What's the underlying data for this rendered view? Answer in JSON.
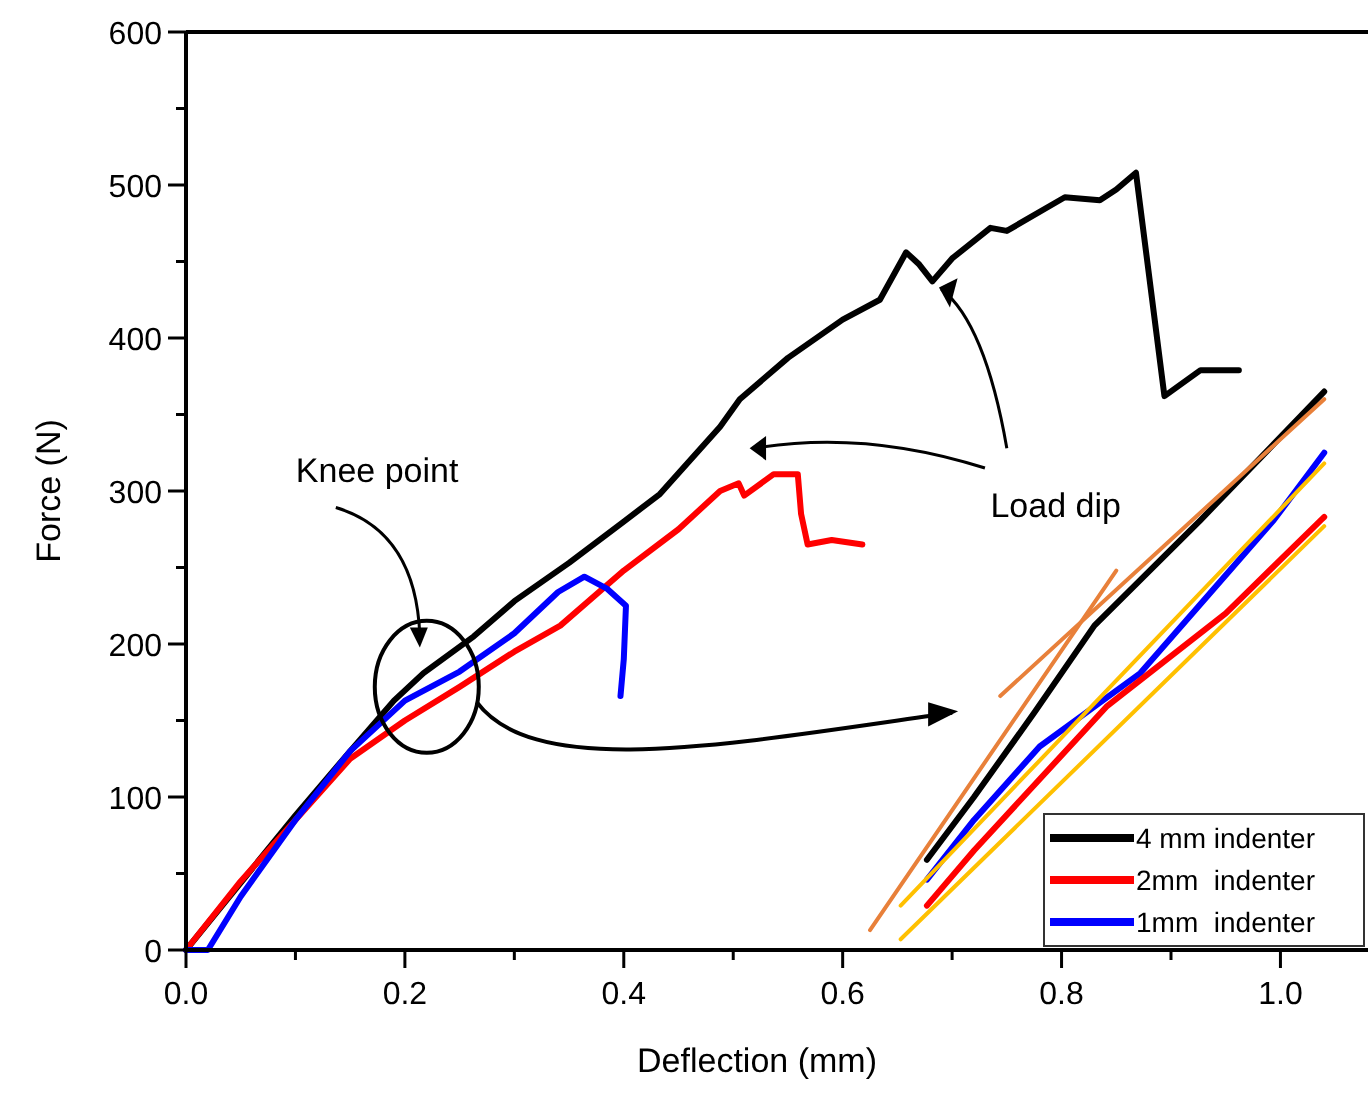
{
  "chart_data": {
    "type": "line",
    "xlabel": "Deflection (mm)",
    "ylabel": "Force (N)",
    "xlim": [
      0,
      1.08
    ],
    "ylim": [
      0,
      600
    ],
    "xticks": [
      {
        "value": 0,
        "label": "0.0"
      },
      {
        "value": 0.1,
        "label": null
      },
      {
        "value": 0.2,
        "label": "0.2"
      },
      {
        "value": 0.3,
        "label": null
      },
      {
        "value": 0.4,
        "label": "0.4"
      },
      {
        "value": 0.5,
        "label": null
      },
      {
        "value": 0.6,
        "label": "0.6"
      },
      {
        "value": 0.7,
        "label": null
      },
      {
        "value": 0.8,
        "label": "0.8"
      },
      {
        "value": 0.9,
        "label": null
      },
      {
        "value": 1.0,
        "label": "1.0"
      }
    ],
    "yticks": [
      0,
      {
        "value": 50,
        "label": null
      },
      100,
      {
        "value": 150,
        "label": null
      },
      200,
      {
        "value": 250,
        "label": null
      },
      300,
      {
        "value": 350,
        "label": null
      },
      400,
      {
        "value": 450,
        "label": null
      },
      500,
      {
        "value": 550,
        "label": null
      },
      600
    ],
    "legend": "bottom right",
    "marker": "none",
    "line_style": "solid",
    "grid": false,
    "series": [
      {
        "name": "4 mm indenter",
        "color": "#000000",
        "x": [
          0,
          0.1,
          0.15,
          0.19,
          0.217,
          0.263,
          0.3,
          0.35,
          0.4,
          0.433,
          0.488,
          0.506,
          0.55,
          0.6,
          0.634,
          0.658,
          0.67,
          0.682,
          0.7,
          0.735,
          0.75,
          0.803,
          0.835,
          0.85,
          0.868,
          0.894,
          0.927,
          0.962
        ],
        "values": [
          0,
          88,
          130,
          163,
          181,
          205,
          228,
          253,
          280,
          298,
          342,
          360,
          387,
          412,
          425,
          456,
          448,
          437,
          452,
          472,
          470,
          492,
          490,
          497,
          508,
          362,
          379,
          379
        ]
      },
      {
        "name": "2mm  indenter",
        "color": "#ff0000",
        "x": [
          0,
          0.05,
          0.1,
          0.15,
          0.2,
          0.25,
          0.3,
          0.342,
          0.4,
          0.45,
          0.488,
          0.505,
          0.51,
          0.537,
          0.559,
          0.562,
          0.568,
          0.59,
          0.618
        ],
        "values": [
          0,
          45,
          85,
          125,
          150,
          172,
          195,
          212,
          248,
          275,
          300,
          305,
          297,
          311,
          311,
          285,
          265,
          268,
          265
        ]
      },
      {
        "name": "1mm  indenter",
        "color": "#0000ff",
        "x": [
          0,
          0.02,
          0.05,
          0.1,
          0.15,
          0.2,
          0.25,
          0.3,
          0.34,
          0.364,
          0.385,
          0.402,
          0.4,
          0.397
        ],
        "values": [
          0,
          0,
          35,
          85,
          130,
          163,
          182,
          207,
          234,
          244,
          236,
          225,
          190,
          166
        ]
      },
      {
        "color": "#000000",
        "x": [
          0.677,
          0.72,
          0.775,
          0.83,
          0.927,
          1.04
        ],
        "values": [
          59,
          100,
          155,
          212,
          281,
          365
        ]
      },
      {
        "color": "#0000ff",
        "x": [
          0.677,
          0.72,
          0.78,
          0.872,
          0.994,
          1.04
        ],
        "values": [
          46,
          85,
          133,
          181,
          281,
          325
        ]
      },
      {
        "color": "#ff0000",
        "x": [
          0.677,
          0.72,
          0.841,
          0.95,
          1.037,
          1.04
        ],
        "values": [
          29,
          65,
          159,
          220,
          281,
          283
        ]
      },
      {
        "color": "#e8803a",
        "x": [
          0.625,
          0.85
        ],
        "values": [
          13,
          248
        ]
      },
      {
        "color": "#e8803a",
        "x": [
          0.744,
          1.04
        ],
        "values": [
          166,
          360
        ]
      },
      {
        "color": "#ffc000",
        "x": [
          0.653,
          1.04
        ],
        "values": [
          29,
          318
        ]
      },
      {
        "color": "#ffc000",
        "x": [
          0.653,
          1.04
        ],
        "values": [
          7,
          277
        ]
      }
    ],
    "annotations": [
      "Knee point",
      "Load dip"
    ]
  }
}
